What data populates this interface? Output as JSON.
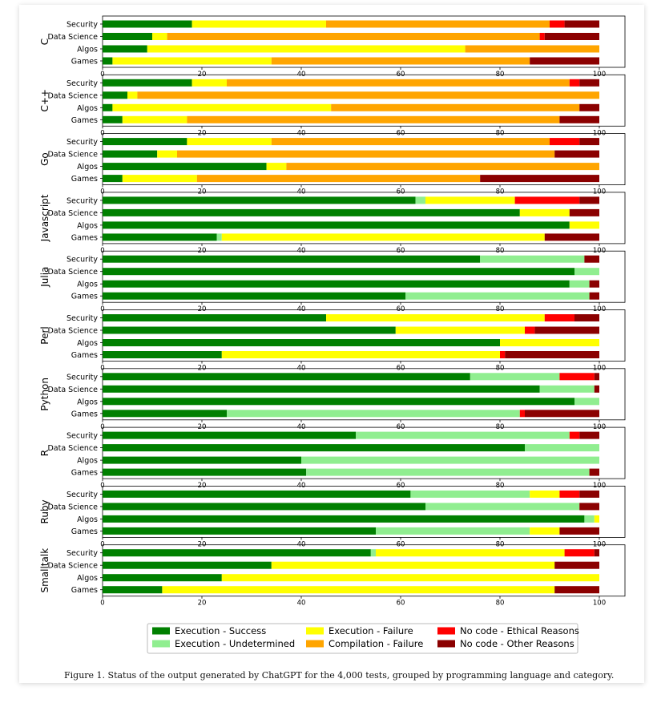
{
  "caption": "Figure 1.  Status of the output generated by ChatGPT for the 4,000 tests, grouped by programming language and category.",
  "chart_data": {
    "type": "bar",
    "orientation": "horizontal-stacked",
    "xlim": [
      0,
      100
    ],
    "xticks": [
      0,
      20,
      40,
      60,
      80,
      100
    ],
    "grid": false,
    "legend_position": "bottom-center",
    "categories": [
      "Security",
      "Data Science",
      "Algos",
      "Games"
    ],
    "series": [
      {
        "name": "Execution - Success",
        "color": "#008000"
      },
      {
        "name": "Execution - Undetermined",
        "color": "#90ee90"
      },
      {
        "name": "Execution - Failure",
        "color": "#ffff00"
      },
      {
        "name": "Compilation - Failure",
        "color": "#ffa500"
      },
      {
        "name": "No code - Ethical Reasons",
        "color": "#ff0000"
      },
      {
        "name": "No code - Other Reasons",
        "color": "#8b0000"
      }
    ],
    "panels": [
      {
        "language": "C",
        "values": [
          [
            18,
            0,
            27,
            45,
            3,
            7
          ],
          [
            10,
            0,
            3,
            75,
            1,
            11
          ],
          [
            9,
            0,
            64,
            27,
            0,
            0
          ],
          [
            2,
            0,
            32,
            52,
            0,
            14
          ]
        ]
      },
      {
        "language": "C++",
        "values": [
          [
            18,
            0,
            7,
            69,
            2,
            4
          ],
          [
            5,
            0,
            2,
            93,
            0,
            0
          ],
          [
            2,
            0,
            44,
            50,
            0,
            4
          ],
          [
            4,
            0,
            13,
            75,
            0,
            8
          ]
        ]
      },
      {
        "language": "Go",
        "values": [
          [
            17,
            0,
            17,
            56,
            6,
            4
          ],
          [
            11,
            0,
            4,
            76,
            0,
            9
          ],
          [
            33,
            0,
            4,
            63,
            0,
            0
          ],
          [
            4,
            0,
            15,
            57,
            0,
            24
          ]
        ]
      },
      {
        "language": "Javascript",
        "values": [
          [
            63,
            2,
            18,
            0,
            13,
            4
          ],
          [
            84,
            0,
            10,
            0,
            0,
            6
          ],
          [
            94,
            0,
            6,
            0,
            0,
            0
          ],
          [
            23,
            1,
            65,
            0,
            0,
            11
          ]
        ]
      },
      {
        "language": "Julia",
        "values": [
          [
            76,
            21,
            0,
            0,
            0,
            3
          ],
          [
            95,
            5,
            0,
            0,
            0,
            0
          ],
          [
            94,
            4,
            0,
            0,
            0,
            2
          ],
          [
            61,
            37,
            0,
            0,
            0,
            2
          ]
        ]
      },
      {
        "language": "Perl",
        "values": [
          [
            45,
            0,
            44,
            0,
            6,
            5
          ],
          [
            59,
            0,
            26,
            0,
            2,
            13
          ],
          [
            80,
            0,
            20,
            0,
            0,
            0
          ],
          [
            24,
            0,
            56,
            0,
            1,
            19
          ]
        ]
      },
      {
        "language": "Python",
        "values": [
          [
            74,
            18,
            0,
            0,
            7,
            1
          ],
          [
            88,
            11,
            0,
            0,
            0,
            1
          ],
          [
            95,
            5,
            0,
            0,
            0,
            0
          ],
          [
            25,
            59,
            0,
            0,
            1,
            15
          ]
        ]
      },
      {
        "language": "R",
        "values": [
          [
            51,
            43,
            0,
            0,
            2,
            4
          ],
          [
            85,
            15,
            0,
            0,
            0,
            0
          ],
          [
            40,
            60,
            0,
            0,
            0,
            0
          ],
          [
            41,
            57,
            0,
            0,
            0,
            2
          ]
        ]
      },
      {
        "language": "Ruby",
        "values": [
          [
            62,
            24,
            6,
            0,
            4,
            4
          ],
          [
            65,
            31,
            0,
            0,
            0,
            4
          ],
          [
            97,
            2,
            1,
            0,
            0,
            0
          ],
          [
            55,
            31,
            6,
            0,
            0,
            8
          ]
        ]
      },
      {
        "language": "Smalltalk",
        "values": [
          [
            54,
            1,
            38,
            0,
            6,
            1
          ],
          [
            34,
            0,
            57,
            0,
            0,
            9
          ],
          [
            24,
            0,
            76,
            0,
            0,
            0
          ],
          [
            12,
            0,
            79,
            0,
            0,
            9
          ]
        ]
      }
    ]
  }
}
